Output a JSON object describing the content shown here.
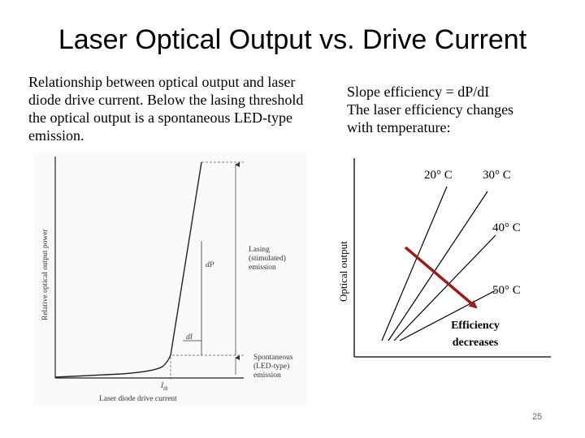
{
  "slide": {
    "title": "Laser Optical Output vs. Drive Current",
    "page_number": "25"
  },
  "left_text": {
    "paragraph": "Relationship between optical output and laser diode drive current. Below the lasing threshold the optical output is a spontaneous LED-type emission."
  },
  "right_text": {
    "lines": [
      "Slope efficiency = dP/dI",
      "The laser efficiency changes",
      "with temperature:"
    ]
  },
  "left_figure": {
    "y_axis_label": "Relative optical output power",
    "x_axis_label": "Laser diode drive current",
    "dP_label": "dP",
    "dI_label": "dI",
    "ith_label": "I",
    "ith_sub": "th",
    "lasing_label": [
      "Lasing",
      "(stimulated)",
      "emission"
    ],
    "spontaneous_label": [
      "Spontaneous",
      "(LED-type)",
      "emission"
    ]
  },
  "right_figure": {
    "y_axis_label": "Optical output",
    "temp_labels": [
      "20° C",
      "30° C",
      "40° C",
      "50° C"
    ],
    "efficiency_label": [
      "Efficiency",
      "decreases"
    ],
    "arrow_color": "#9b1c1c"
  }
}
